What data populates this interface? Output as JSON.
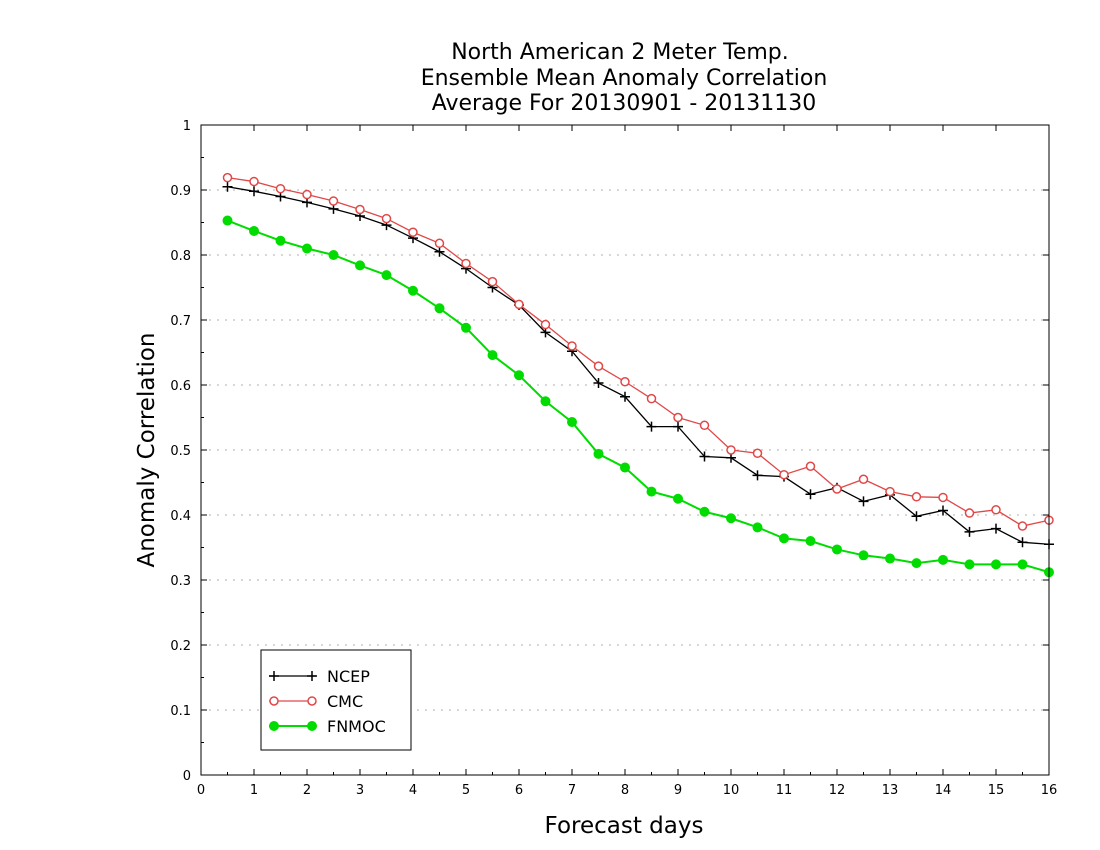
{
  "chart_data": {
    "type": "line",
    "title": [
      "North American 2 Meter Temp.",
      "Ensemble Mean Anomaly Correlation",
      "Average For 20130901 - 20131130"
    ],
    "xlabel": "Forecast days",
    "ylabel": "Anomaly Correlation",
    "xlim": [
      0,
      16
    ],
    "ylim": [
      0,
      1
    ],
    "xticks": [
      0,
      1,
      2,
      3,
      4,
      5,
      6,
      7,
      8,
      9,
      10,
      11,
      12,
      13,
      14,
      15,
      16
    ],
    "yticks": [
      0,
      0.1,
      0.2,
      0.3,
      0.4,
      0.5,
      0.6,
      0.7,
      0.8,
      0.9,
      1
    ],
    "ytick_labels": [
      "0",
      "0.1",
      "0.2",
      "0.3",
      "0.4",
      "0.5",
      "0.6",
      "0.7",
      "0.8",
      "0.9",
      "1"
    ],
    "grid": "horizontal-dotted",
    "legend_position": "bottom-left",
    "x": [
      0.5,
      1,
      1.5,
      2,
      2.5,
      3,
      3.5,
      4,
      4.5,
      5,
      5.5,
      6,
      6.5,
      7,
      7.5,
      8,
      8.5,
      9,
      9.5,
      10,
      10.5,
      11,
      11.5,
      12,
      12.5,
      13,
      13.5,
      14,
      14.5,
      15,
      15.5,
      16
    ],
    "series": [
      {
        "name": "NCEP",
        "color": "#000000",
        "marker": "plus",
        "values": [
          0.905,
          0.898,
          0.89,
          0.881,
          0.871,
          0.86,
          0.846,
          0.826,
          0.805,
          0.779,
          0.75,
          0.723,
          0.681,
          0.652,
          0.603,
          0.582,
          0.536,
          0.536,
          0.49,
          0.488,
          0.461,
          0.459,
          0.432,
          0.442,
          0.421,
          0.431,
          0.398,
          0.407,
          0.374,
          0.379,
          0.358,
          0.355
        ]
      },
      {
        "name": "CMC",
        "color": "#e04848",
        "marker": "open-circle",
        "values": [
          0.919,
          0.913,
          0.902,
          0.893,
          0.883,
          0.87,
          0.856,
          0.835,
          0.818,
          0.787,
          0.759,
          0.724,
          0.693,
          0.66,
          0.629,
          0.605,
          0.579,
          0.55,
          0.538,
          0.5,
          0.495,
          0.462,
          0.475,
          0.44,
          0.455,
          0.436,
          0.428,
          0.427,
          0.403,
          0.408,
          0.383,
          0.392
        ]
      },
      {
        "name": "FNMOC",
        "color": "#00dc00",
        "marker": "filled-circle",
        "values": [
          0.853,
          0.837,
          0.822,
          0.81,
          0.8,
          0.784,
          0.769,
          0.745,
          0.718,
          0.688,
          0.646,
          0.615,
          0.575,
          0.543,
          0.494,
          0.473,
          0.436,
          0.425,
          0.405,
          0.395,
          0.381,
          0.364,
          0.36,
          0.347,
          0.338,
          0.333,
          0.326,
          0.331,
          0.324,
          0.324,
          0.324,
          0.312
        ]
      }
    ]
  }
}
